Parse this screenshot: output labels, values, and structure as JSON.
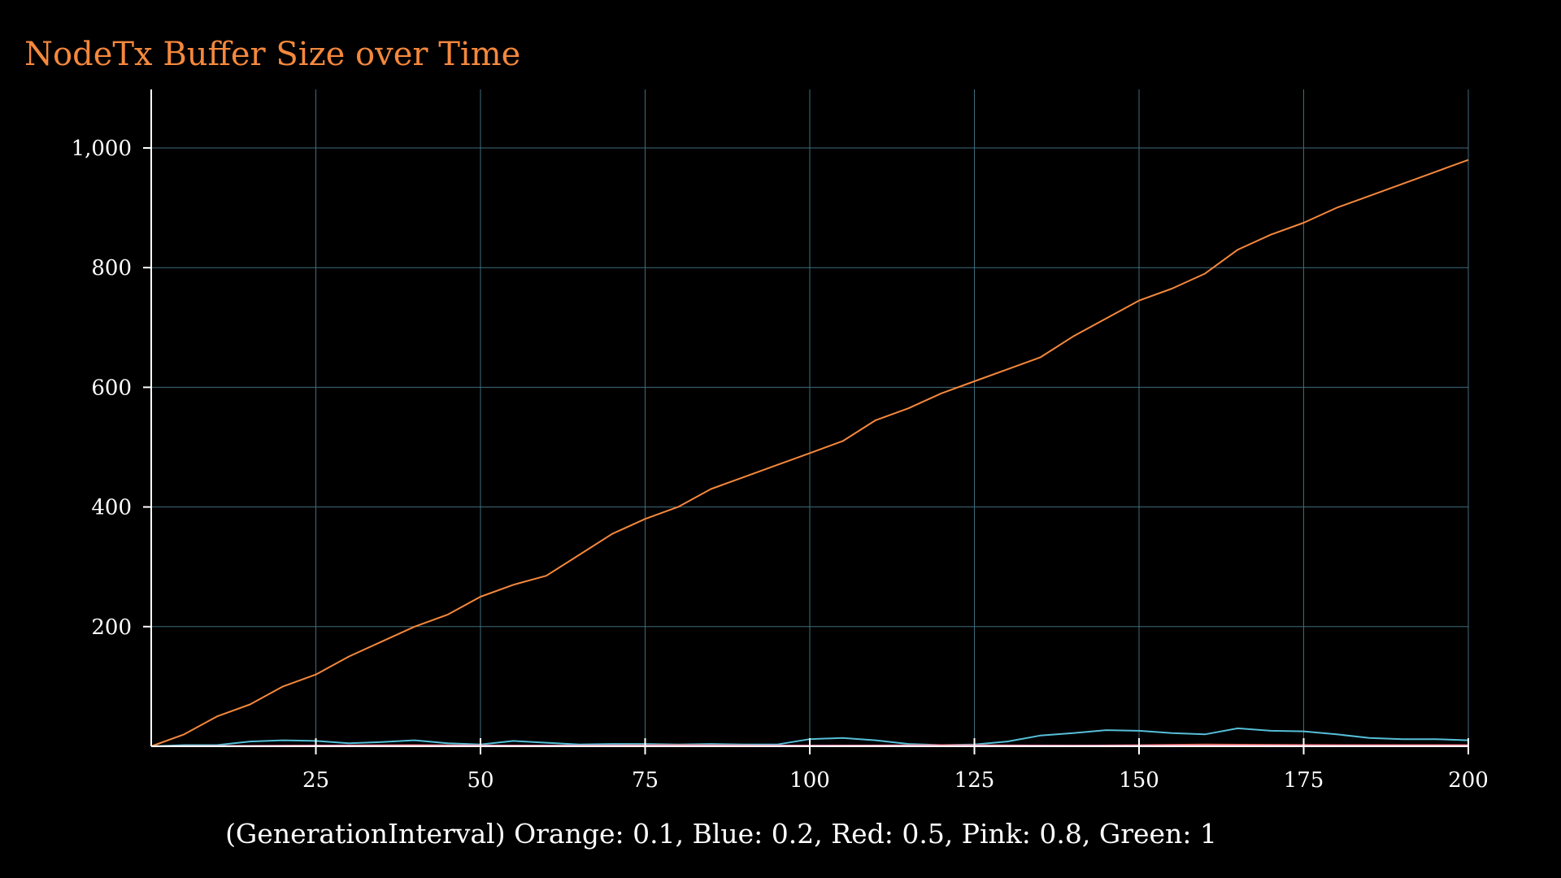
{
  "chart_data": {
    "type": "line",
    "title": "NodeTx Buffer Size over Time",
    "xlabel": "(GenerationInterval) Orange: 0.1, Blue: 0.2, Red: 0.5, Pink: 0.8, Green: 1",
    "ylabel": "",
    "xlim": [
      0,
      200
    ],
    "ylim": [
      0,
      1100
    ],
    "x_ticks": [
      25,
      50,
      75,
      100,
      125,
      150,
      175,
      200
    ],
    "y_ticks": [
      200,
      400,
      600,
      800,
      1000
    ],
    "x_tick_labels": [
      "25",
      "50",
      "75",
      "100",
      "125",
      "150",
      "175",
      "200"
    ],
    "y_tick_labels": [
      "200",
      "400",
      "600",
      "800",
      "1,000"
    ],
    "grid": true,
    "series": [
      {
        "color": "#f5883c",
        "x": [
          0,
          5,
          10,
          15,
          20,
          25,
          30,
          35,
          40,
          45,
          50,
          55,
          60,
          65,
          70,
          75,
          80,
          85,
          90,
          95,
          100,
          105,
          110,
          115,
          120,
          125,
          130,
          135,
          140,
          145,
          150,
          155,
          160,
          165,
          170,
          175,
          180,
          185,
          190,
          195,
          200
        ],
        "y": [
          0,
          20,
          50,
          70,
          100,
          120,
          150,
          175,
          200,
          220,
          250,
          270,
          285,
          320,
          355,
          380,
          400,
          430,
          450,
          470,
          490,
          510,
          545,
          565,
          590,
          610,
          630,
          650,
          685,
          715,
          745,
          765,
          790,
          830,
          855,
          875,
          900,
          920,
          940,
          960,
          980
        ]
      },
      {
        "color": "#56bfd8",
        "x": [
          0,
          5,
          10,
          15,
          20,
          25,
          30,
          35,
          40,
          45,
          50,
          55,
          60,
          65,
          70,
          75,
          80,
          85,
          90,
          95,
          100,
          105,
          110,
          115,
          120,
          125,
          130,
          135,
          140,
          145,
          150,
          155,
          160,
          165,
          170,
          175,
          180,
          185,
          190,
          195,
          200
        ],
        "y": [
          0,
          2,
          2,
          8,
          10,
          9,
          5,
          7,
          10,
          5,
          3,
          9,
          6,
          3,
          4,
          4,
          3,
          4,
          3,
          3,
          12,
          14,
          10,
          4,
          2,
          3,
          8,
          18,
          22,
          27,
          26,
          22,
          20,
          30,
          26,
          25,
          20,
          14,
          12,
          12,
          10
        ]
      },
      {
        "color": "#e06c5a",
        "x": [
          0,
          20,
          40,
          60,
          80,
          100,
          120,
          140,
          160,
          180,
          200
        ],
        "y": [
          0,
          1,
          2,
          1,
          2,
          1,
          2,
          1,
          3,
          2,
          2
        ]
      },
      {
        "color": "#ff99cc",
        "x": [
          0,
          25,
          50,
          75,
          100,
          125,
          150,
          175,
          200
        ],
        "y": [
          0,
          1,
          1,
          1,
          1,
          1,
          1,
          1,
          1
        ]
      },
      {
        "color": "#a8d08d",
        "x": [
          0,
          25,
          50,
          75,
          100,
          125,
          150,
          175,
          200
        ],
        "y": [
          0,
          0,
          0,
          0,
          0,
          0,
          0,
          0,
          0
        ]
      }
    ]
  }
}
